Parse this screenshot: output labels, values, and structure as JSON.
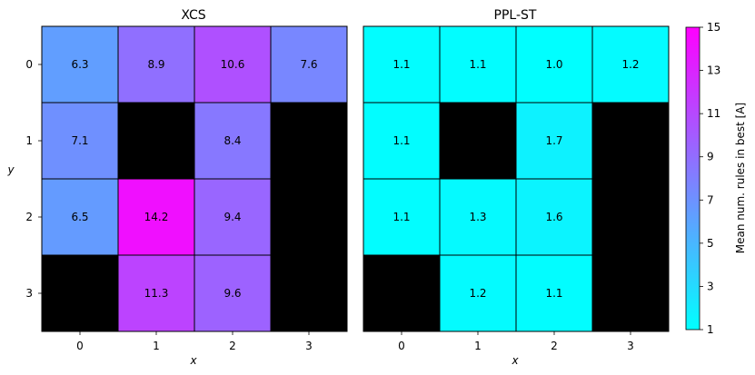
{
  "chart_data": [
    {
      "type": "heatmap",
      "title": "XCS",
      "xlabel": "x",
      "ylabel": "y",
      "x_ticks": [
        "0",
        "1",
        "2",
        "3"
      ],
      "y_ticks": [
        "0",
        "1",
        "2",
        "3"
      ],
      "values": [
        [
          6.3,
          8.9,
          10.6,
          7.6
        ],
        [
          7.1,
          null,
          8.4,
          null
        ],
        [
          6.5,
          14.2,
          9.4,
          null
        ],
        [
          null,
          11.3,
          9.6,
          null
        ]
      ],
      "labels": [
        [
          "6.3",
          "8.9",
          "10.6",
          "7.6"
        ],
        [
          "7.1",
          "",
          "8.4",
          ""
        ],
        [
          "6.5",
          "14.2",
          "9.4",
          ""
        ],
        [
          "",
          "11.3",
          "9.6",
          ""
        ]
      ],
      "missing_color": "#000000"
    },
    {
      "type": "heatmap",
      "title": "PPL-ST",
      "xlabel": "x",
      "ylabel": "",
      "x_ticks": [
        "0",
        "1",
        "2",
        "3"
      ],
      "y_ticks": [],
      "values": [
        [
          1.1,
          1.1,
          1.0,
          1.2
        ],
        [
          1.1,
          null,
          1.7,
          null
        ],
        [
          1.1,
          1.3,
          1.6,
          null
        ],
        [
          null,
          1.2,
          1.1,
          null
        ]
      ],
      "labels": [
        [
          "1.1",
          "1.1",
          "1.0",
          "1.2"
        ],
        [
          "1.1",
          "",
          "1.7",
          ""
        ],
        [
          "1.1",
          "1.3",
          "1.6",
          ""
        ],
        [
          "",
          "1.2",
          "1.1",
          ""
        ]
      ],
      "missing_color": "#000000"
    }
  ],
  "colorbar": {
    "label": "Mean num. rules in best [A]",
    "min": 1,
    "max": 15,
    "ticks": [
      "1",
      "3",
      "5",
      "7",
      "9",
      "11",
      "13",
      "15"
    ],
    "colormap": "cool",
    "color_low": "#00ffff",
    "color_high": "#ff00ff"
  }
}
